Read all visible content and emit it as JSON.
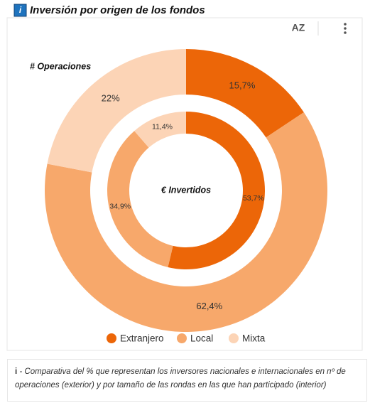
{
  "chart_data": {
    "type": "donut",
    "title": "Inversión por origen de los fondos",
    "categories": [
      "Extranjero",
      "Local",
      "Mixta"
    ],
    "colors": [
      "#ec6608",
      "#f7a86b",
      "#fcd4b6"
    ],
    "series": [
      {
        "name": "# Operaciones",
        "values": [
          15.7,
          62.4,
          22
        ],
        "value_labels": [
          "15,7%",
          "62,4%",
          "22%"
        ]
      },
      {
        "name": "€ Invertidos",
        "values": [
          53.7,
          34.9,
          11.4
        ],
        "value_labels": [
          "53,7%",
          "34,9%",
          "11,4%"
        ]
      }
    ]
  },
  "footnote": {
    "marker": "i",
    "text": "- Comparativa del % que representan los inversores nacionales e internacionales en nº de operaciones (exterior) y por tamaño de las rondas en las que han participado (interior)"
  }
}
